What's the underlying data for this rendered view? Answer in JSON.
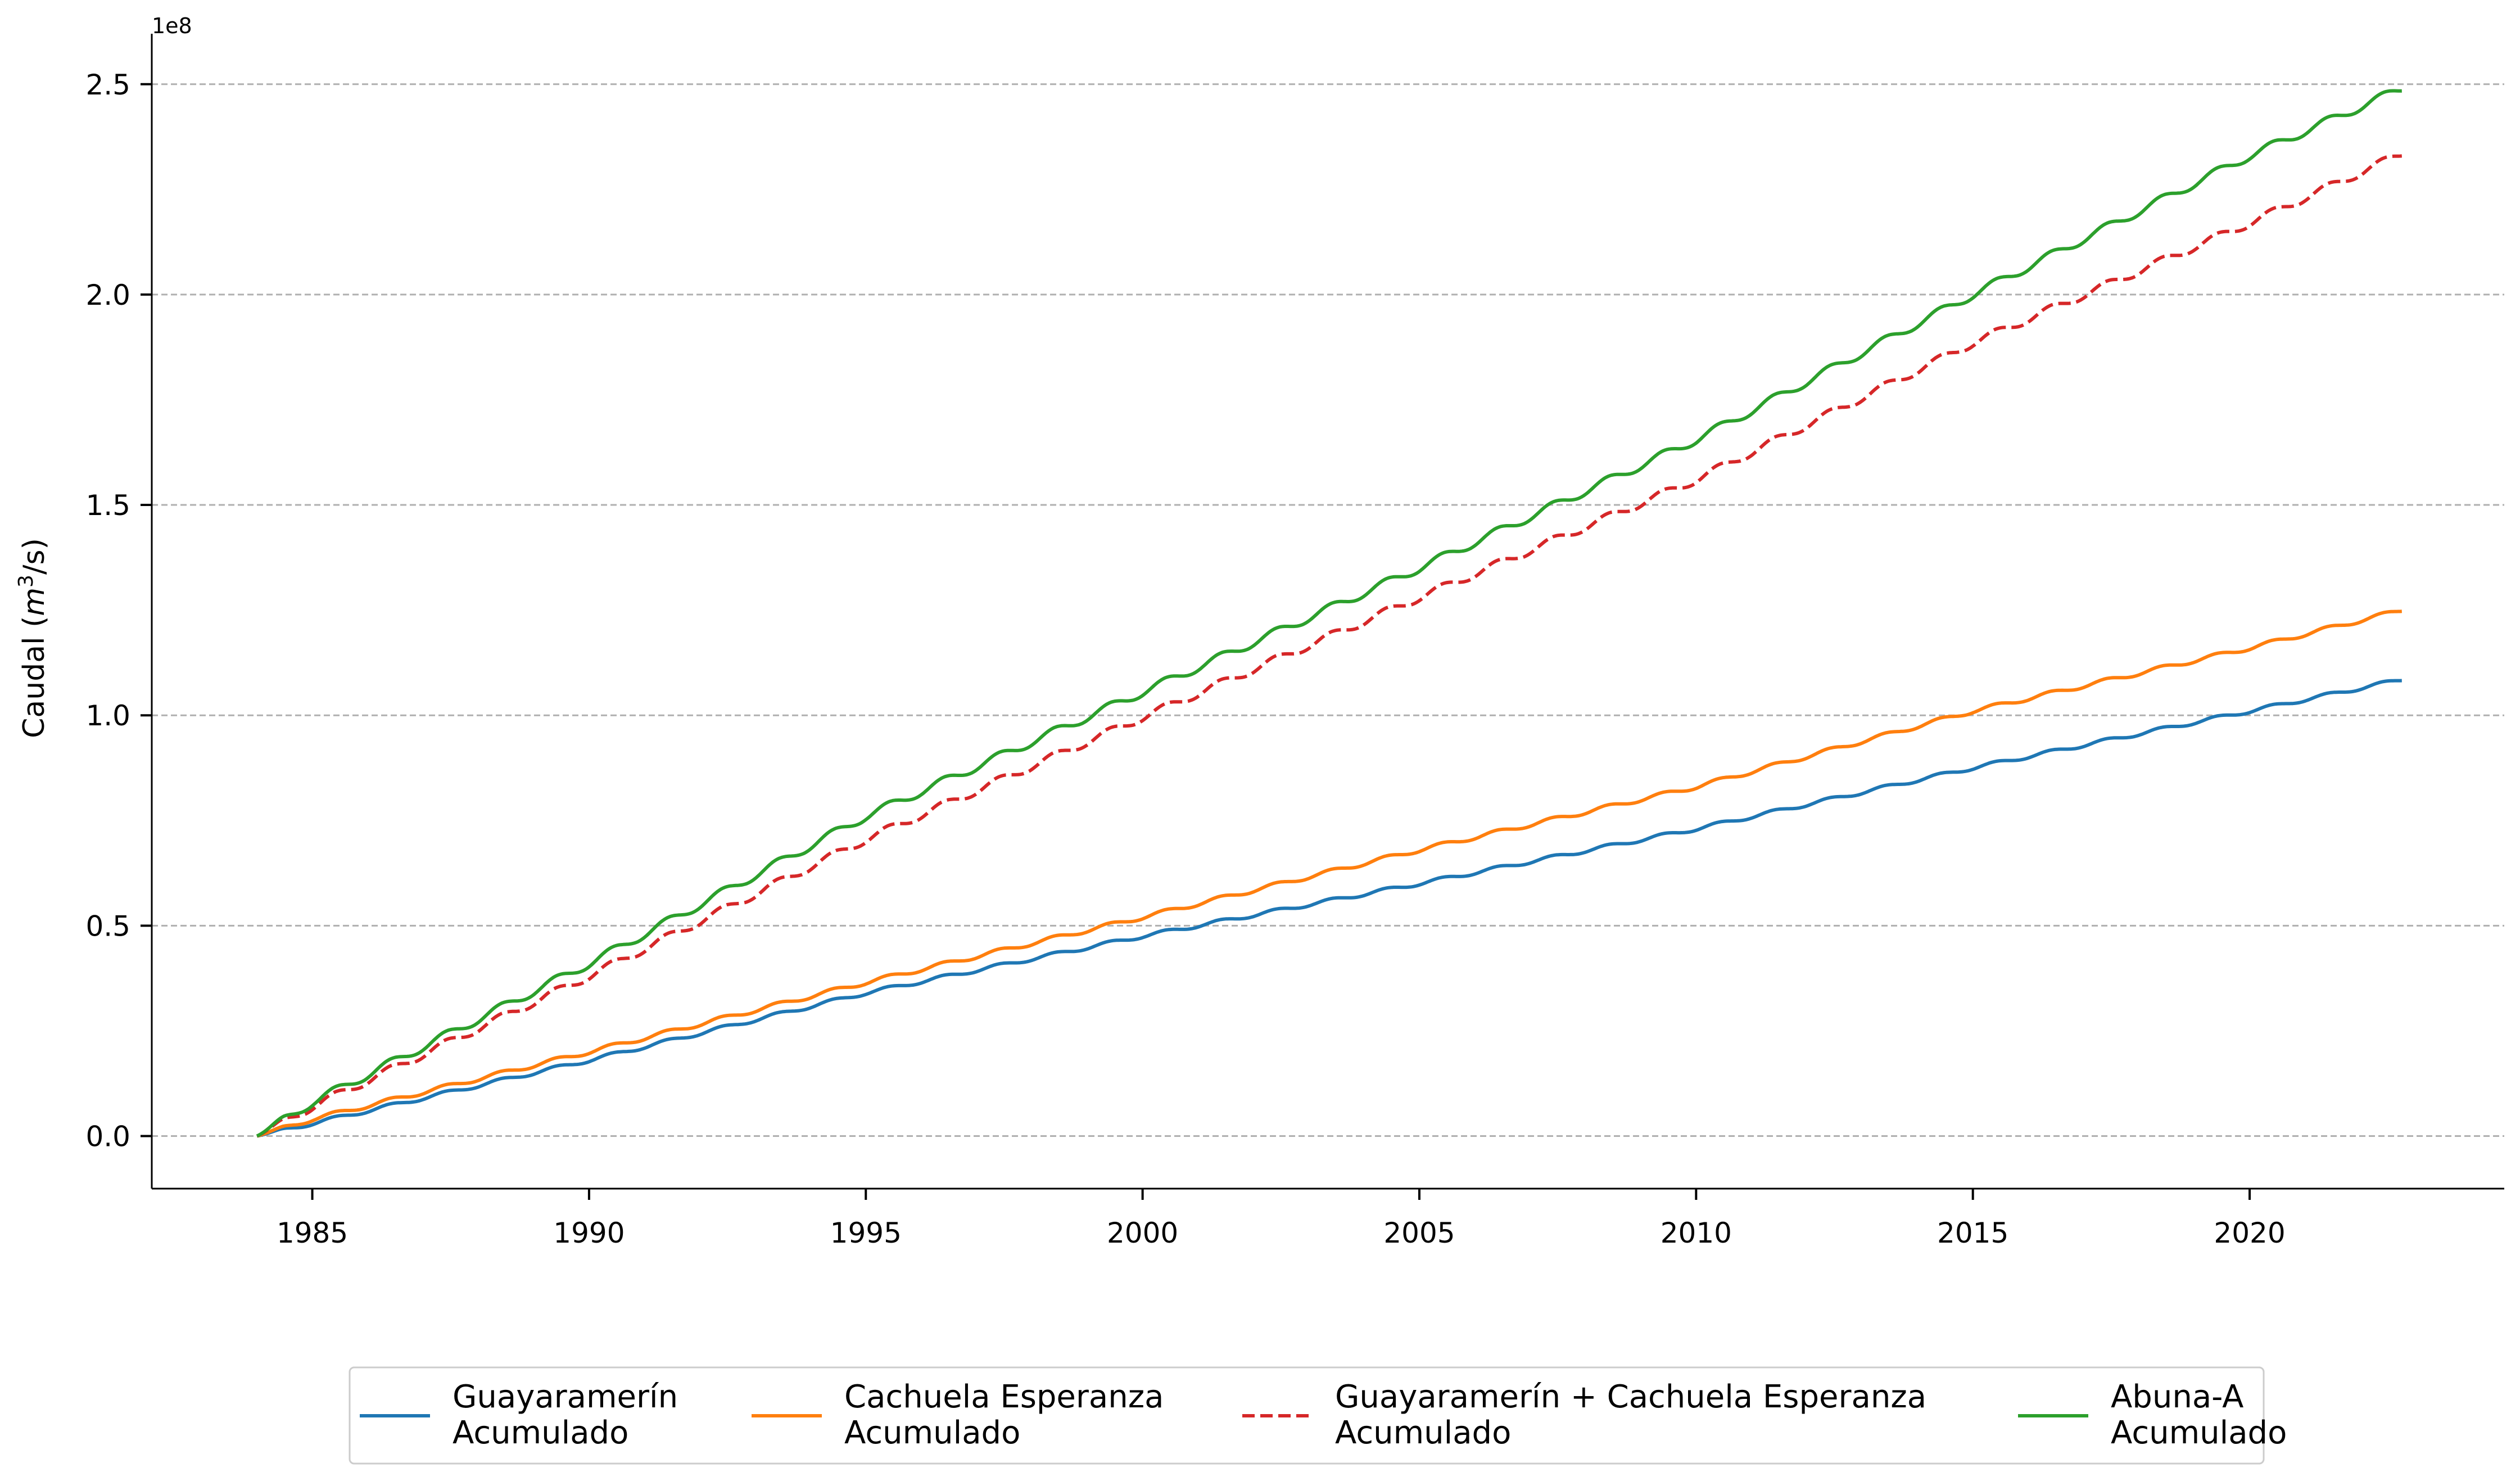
{
  "chart_data": {
    "type": "line",
    "title": "",
    "xlabel": "",
    "ylabel": "Caudal (m³/s)",
    "ylabel_parts": {
      "prefix": "Caudal (",
      "var": "m",
      "sup": "3",
      "suffix": "/s)"
    },
    "y_offset_label": "1e8",
    "xlim": [
      1982.1,
      2024.6
    ],
    "ylim": [
      -0.125,
      2.62
    ],
    "y_scale_factor": 100000000,
    "x_ticks": [
      1985,
      1990,
      1995,
      2000,
      2005,
      2010,
      2015,
      2020
    ],
    "x_tick_labels": [
      "1985",
      "1990",
      "1995",
      "2000",
      "2005",
      "2010",
      "2015",
      "2020"
    ],
    "y_ticks": [
      0.0,
      0.5,
      1.0,
      1.5,
      2.0,
      2.5
    ],
    "y_tick_labels": [
      "0.0",
      "0.5",
      "1.0",
      "1.5",
      "2.0",
      "2.5"
    ],
    "grid": "horizontal dashed",
    "legend_placement": "bottom-center",
    "x_start": 1984.0,
    "x_end": 2022.75,
    "series": [
      {
        "name": "Guayaramerín\nAcumulado",
        "color": "#1f77b4",
        "dash": "solid",
        "x": [
          1984.0,
          1985.0,
          1990.0,
          1995.0,
          2000.0,
          2005.0,
          2010.0,
          2015.0,
          2020.0,
          2022.75
        ],
        "values": [
          0.0,
          0.03,
          0.18,
          0.34,
          0.475,
          0.6,
          0.73,
          0.875,
          1.01,
          1.085
        ]
      },
      {
        "name": "Cachuela Esperanza\nAcumulado",
        "color": "#ff7f0e",
        "dash": "solid",
        "x": [
          1984.0,
          1985.0,
          1990.0,
          1995.0,
          2000.0,
          2005.0,
          2010.0,
          2015.0,
          2020.0,
          2022.75
        ],
        "values": [
          0.0,
          0.04,
          0.2,
          0.365,
          0.52,
          0.68,
          0.83,
          1.01,
          1.16,
          1.25
        ]
      },
      {
        "name": "Guayaramerín + Cachuela Esperanza\nAcumulado",
        "color": "#d62728",
        "dash": "dashed",
        "x": [
          1984.0,
          1985.0,
          1990.0,
          1995.0,
          2000.0,
          2005.0,
          2010.0,
          2015.0,
          2020.0,
          2022.75
        ],
        "values": [
          0.0,
          0.07,
          0.38,
          0.705,
          0.995,
          1.28,
          1.56,
          1.885,
          2.17,
          2.335
        ]
      },
      {
        "name": "Abuna-A\nAcumulado",
        "color": "#2ca02c",
        "dash": "solid",
        "x": [
          1984.0,
          1985.0,
          1990.0,
          1995.0,
          2000.0,
          2005.0,
          2010.0,
          2015.0,
          2020.0,
          2022.75
        ],
        "values": [
          0.0,
          0.08,
          0.41,
          0.76,
          1.055,
          1.35,
          1.655,
          2.0,
          2.33,
          2.49
        ]
      }
    ]
  }
}
